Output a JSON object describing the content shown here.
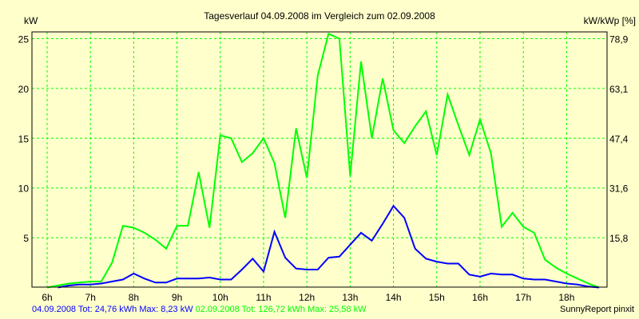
{
  "chart_data": {
    "type": "line",
    "title": "Tagesverlauf 04.09.2008 im Vergleich zum 02.09.2008",
    "ylabel": "kW",
    "ylabel_right": "kW/kWp [%]",
    "ylim": [
      0,
      25.6
    ],
    "yticks": [
      5,
      10,
      15,
      20,
      25
    ],
    "yticks_right": [
      "15,8",
      "31,6",
      "47,4",
      "63,1",
      "78,9"
    ],
    "xticks": [
      "6h",
      "7h",
      "8h",
      "9h",
      "10h",
      "11h",
      "12h",
      "13h",
      "14h",
      "15h",
      "16h",
      "17h",
      "18h"
    ],
    "xlim": [
      5.65,
      18.9
    ],
    "grid": true,
    "series": [
      {
        "name": "02.09.2008",
        "color": "#00ff00",
        "x": [
          6.0,
          6.25,
          6.5,
          6.75,
          7.0,
          7.25,
          7.5,
          7.75,
          8.0,
          8.25,
          8.5,
          8.75,
          9.0,
          9.25,
          9.5,
          9.75,
          10.0,
          10.25,
          10.5,
          10.75,
          11.0,
          11.25,
          11.5,
          11.75,
          12.0,
          12.25,
          12.5,
          12.75,
          13.0,
          13.25,
          13.5,
          13.75,
          14.0,
          14.25,
          14.5,
          14.75,
          15.0,
          15.25,
          15.5,
          15.75,
          16.0,
          16.25,
          16.5,
          16.75,
          17.0,
          17.25,
          17.5,
          17.75,
          18.0,
          18.25,
          18.5,
          18.75
        ],
        "values": [
          0,
          0.2,
          0.4,
          0.5,
          0.6,
          0.6,
          2.5,
          6.2,
          6.0,
          5.5,
          4.8,
          3.9,
          6.2,
          6.2,
          11.6,
          6.0,
          15.3,
          15.0,
          12.6,
          13.5,
          15.0,
          12.5,
          7.0,
          16.0,
          11.0,
          21.3,
          25.5,
          25.0,
          11.2,
          22.7,
          15.0,
          21.0,
          15.8,
          14.5,
          16.2,
          17.7,
          13.3,
          19.4,
          16.3,
          13.3,
          16.9,
          13.5,
          6.1,
          7.5,
          6.1,
          5.5,
          2.8,
          2.0,
          1.4,
          0.9,
          0.4,
          0
        ]
      },
      {
        "name": "04.09.2008",
        "color": "#0000ff",
        "x": [
          6.25,
          6.5,
          6.75,
          7.0,
          7.25,
          7.5,
          7.75,
          8.0,
          8.25,
          8.5,
          8.75,
          9.0,
          9.25,
          9.5,
          9.75,
          10.0,
          10.25,
          10.5,
          10.75,
          11.0,
          11.25,
          11.5,
          11.75,
          12.0,
          12.25,
          12.5,
          12.75,
          13.0,
          13.25,
          13.5,
          13.75,
          14.0,
          14.25,
          14.5,
          14.75,
          15.0,
          15.25,
          15.5,
          15.75,
          16.0,
          16.25,
          16.5,
          16.75,
          17.0,
          17.25,
          17.5,
          17.75,
          18.0,
          18.25,
          18.5,
          18.75
        ],
        "values": [
          0,
          0.2,
          0.3,
          0.3,
          0.4,
          0.6,
          0.8,
          1.4,
          0.9,
          0.5,
          0.5,
          0.9,
          0.9,
          0.9,
          1.0,
          0.8,
          0.8,
          1.8,
          2.9,
          1.6,
          5.6,
          3.0,
          1.9,
          1.8,
          1.8,
          3.0,
          3.1,
          4.3,
          5.5,
          4.7,
          6.4,
          8.2,
          7.0,
          3.9,
          2.9,
          2.6,
          2.4,
          2.4,
          1.3,
          1.1,
          1.4,
          1.3,
          1.3,
          0.9,
          0.8,
          0.8,
          0.6,
          0.4,
          0.3,
          0.1,
          0
        ]
      }
    ]
  },
  "footer": {
    "blue_text": "04.09.2008 Tot: 24,76 kWh Max: 8,23 kW",
    "green_text": "02.09.2008 Tot: 126,72 kWh Max: 25,58 kW",
    "credit": "SunnyReport pinxit"
  }
}
